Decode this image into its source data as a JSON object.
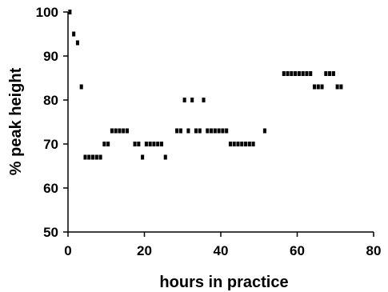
{
  "chart_data": {
    "type": "scatter",
    "title": "",
    "xlabel": "hours in practice",
    "ylabel": "% peak height",
    "xlim": [
      0,
      80
    ],
    "ylim": [
      50,
      100
    ],
    "x_ticks": [
      0,
      20,
      40,
      60,
      80
    ],
    "y_ticks": [
      50,
      60,
      70,
      80,
      90,
      100
    ],
    "grid": false,
    "legend": "none",
    "marker": "square",
    "color": "#000000",
    "series": [
      {
        "points": [
          [
            0.5,
            100
          ],
          [
            1.5,
            95
          ],
          [
            2.5,
            93
          ],
          [
            3.5,
            83
          ],
          [
            4.5,
            67
          ],
          [
            5.5,
            67
          ],
          [
            6.5,
            67
          ],
          [
            7.5,
            67
          ],
          [
            8.5,
            67
          ],
          [
            9.5,
            70
          ],
          [
            10.5,
            70
          ],
          [
            11.5,
            73
          ],
          [
            12.5,
            73
          ],
          [
            13.5,
            73
          ],
          [
            14.5,
            73
          ],
          [
            15.5,
            73
          ],
          [
            17.5,
            70
          ],
          [
            18.5,
            70
          ],
          [
            19.5,
            67
          ],
          [
            20.5,
            70
          ],
          [
            21.5,
            70
          ],
          [
            22.5,
            70
          ],
          [
            23.5,
            70
          ],
          [
            24.5,
            70
          ],
          [
            25.5,
            67
          ],
          [
            28.5,
            73
          ],
          [
            29.5,
            73
          ],
          [
            30.5,
            80
          ],
          [
            31.5,
            73
          ],
          [
            32.5,
            80
          ],
          [
            33.5,
            73
          ],
          [
            34.5,
            73
          ],
          [
            35.5,
            80
          ],
          [
            36.5,
            73
          ],
          [
            37.5,
            73
          ],
          [
            38.5,
            73
          ],
          [
            39.5,
            73
          ],
          [
            40.5,
            73
          ],
          [
            41.5,
            73
          ],
          [
            42.5,
            70
          ],
          [
            43.5,
            70
          ],
          [
            44.5,
            70
          ],
          [
            45.5,
            70
          ],
          [
            46.5,
            70
          ],
          [
            47.5,
            70
          ],
          [
            48.5,
            70
          ],
          [
            51.5,
            73
          ],
          [
            56.5,
            86
          ],
          [
            57.5,
            86
          ],
          [
            58.5,
            86
          ],
          [
            59.5,
            86
          ],
          [
            60.5,
            86
          ],
          [
            61.5,
            86
          ],
          [
            62.5,
            86
          ],
          [
            63.5,
            86
          ],
          [
            64.5,
            83
          ],
          [
            65.5,
            83
          ],
          [
            66.5,
            83
          ],
          [
            67.5,
            86
          ],
          [
            68.5,
            86
          ],
          [
            69.5,
            86
          ],
          [
            70.5,
            83
          ],
          [
            71.5,
            83
          ]
        ]
      }
    ]
  }
}
